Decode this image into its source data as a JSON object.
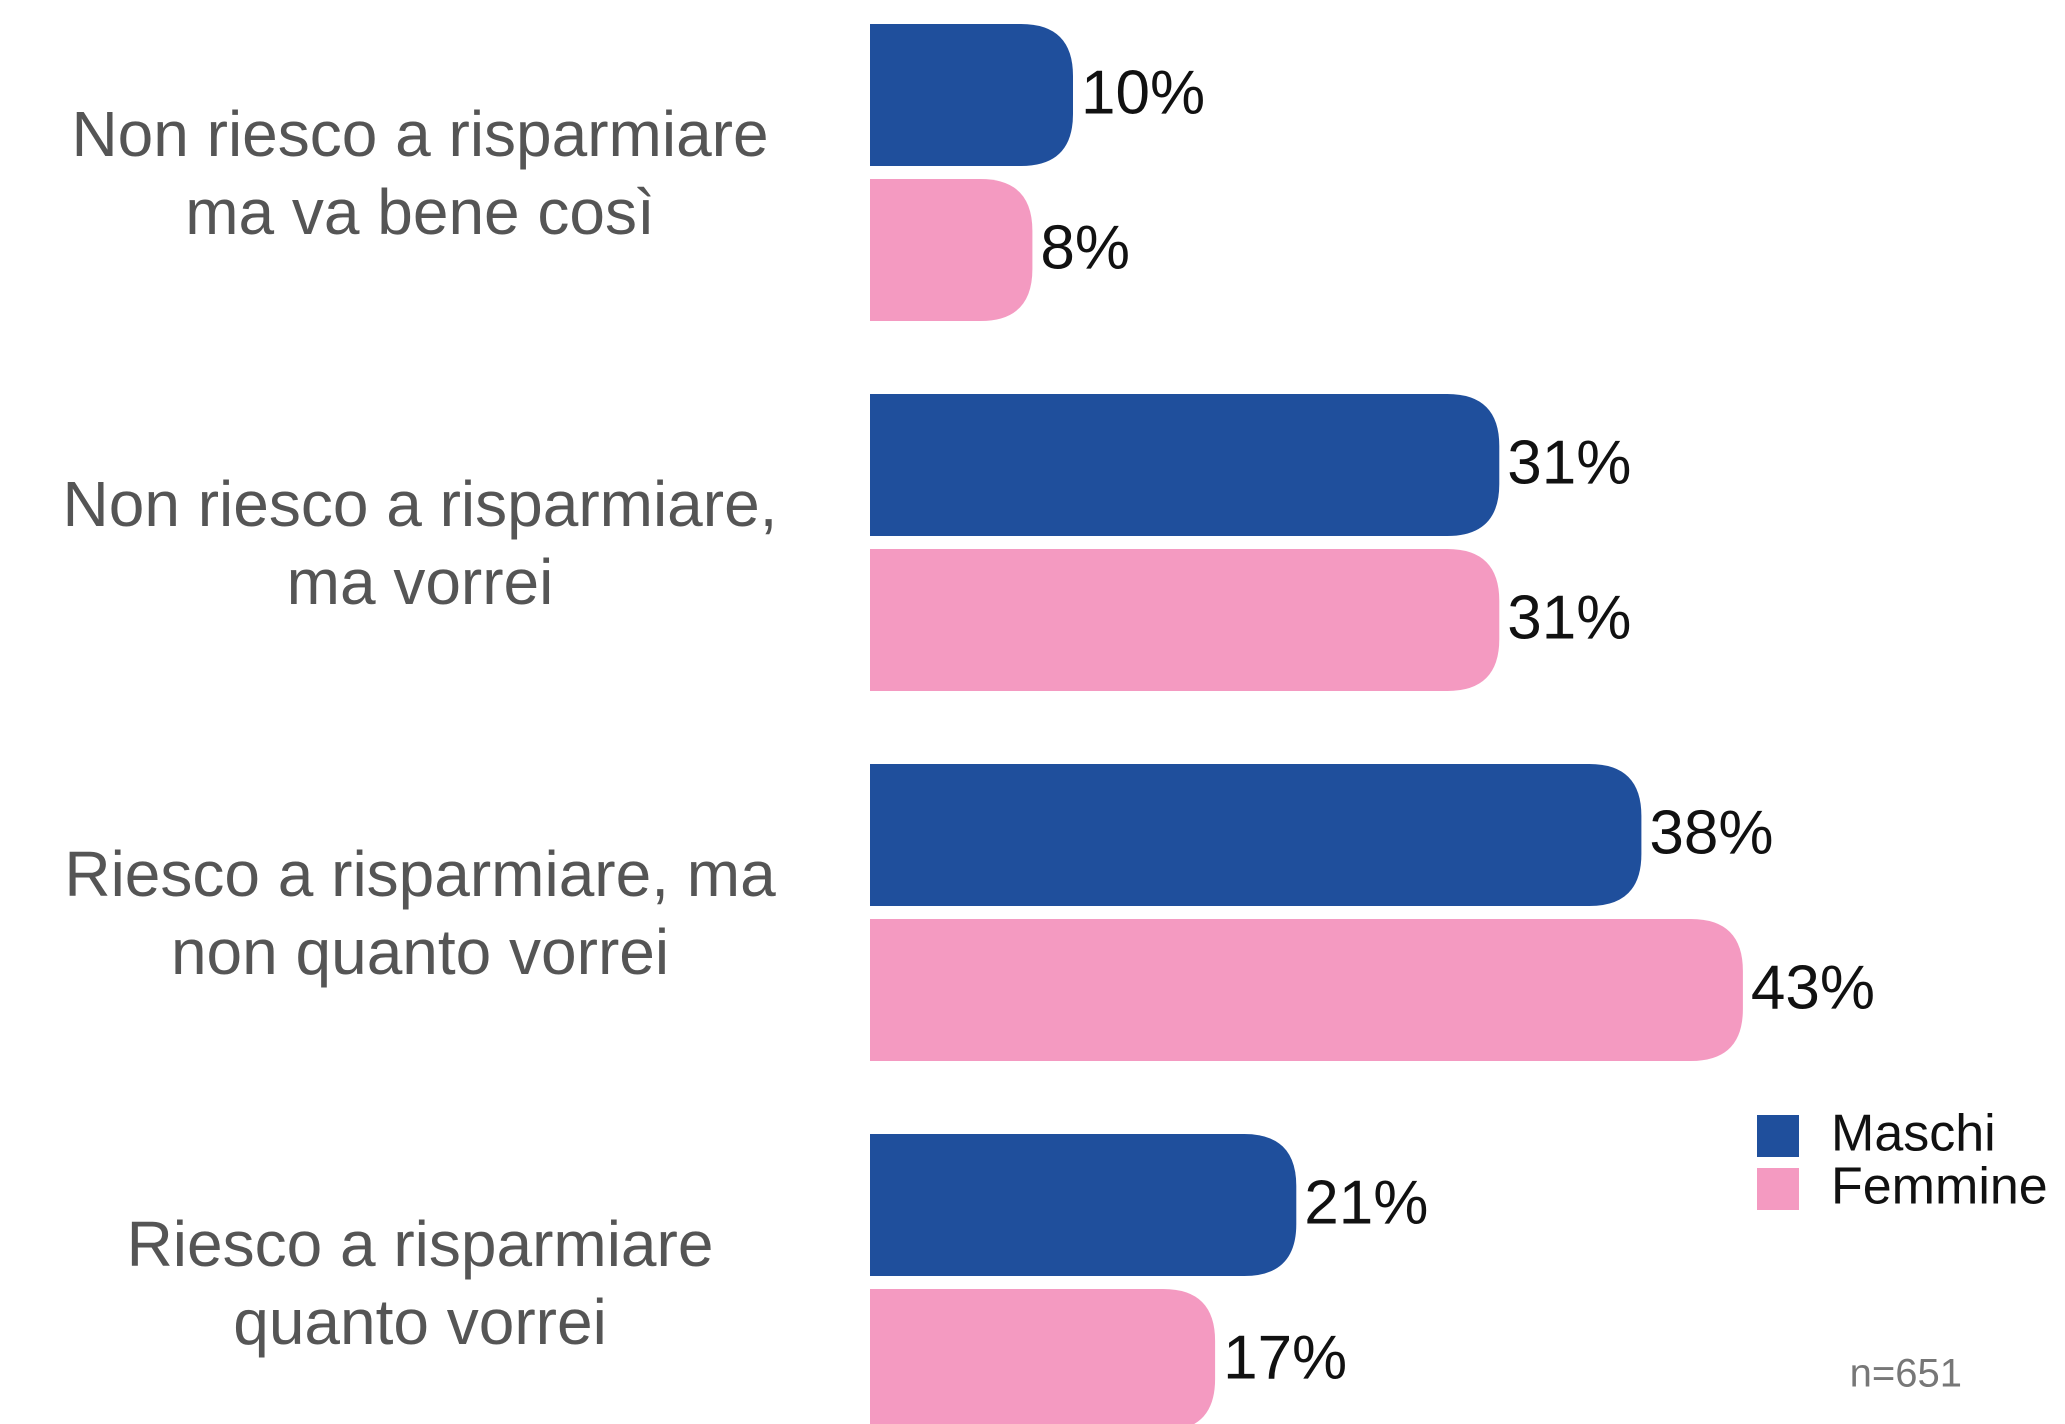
{
  "chart_data": {
    "type": "bar",
    "orientation": "horizontal",
    "categories": [
      "Non riesco a risparmiare ma va bene così",
      "Non riesco a risparmiare, ma vorrei",
      "Riesco a risparmiare, ma non quanto vorrei",
      "Riesco a risparmiare quanto vorrei"
    ],
    "series": [
      {
        "name": "Maschi",
        "color": "#1f4f9c",
        "values": [
          10,
          31,
          38,
          21
        ],
        "value_labels": [
          "10%",
          "31%",
          "38%",
          "21%"
        ]
      },
      {
        "name": "Femmine",
        "color": "#f49ac1",
        "values": [
          8,
          31,
          43,
          17
        ],
        "value_labels": [
          "8%",
          "31%",
          "43%",
          "17%"
        ]
      }
    ],
    "xlim": [
      0,
      100
    ],
    "legend": "lower right",
    "note": "n=651"
  }
}
